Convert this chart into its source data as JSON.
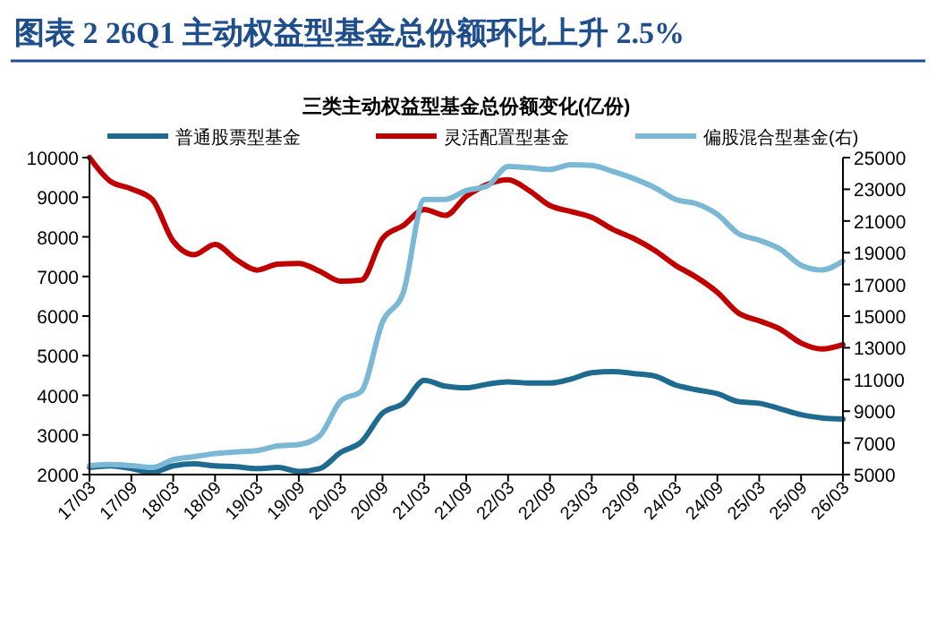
{
  "chart_data": {
    "type": "line",
    "title": "图表 2   26Q1 主动权益型基金总份额环比上升 2.5%",
    "subtitle": "三类主动权益型基金总份额变化(亿份)",
    "categories": [
      "17/03",
      null,
      "17/09",
      null,
      "18/03",
      null,
      "18/09",
      null,
      "19/03",
      null,
      "19/09",
      null,
      "20/03",
      null,
      "20/09",
      null,
      "21/03",
      null,
      "21/09",
      null,
      "22/03",
      null,
      "22/09",
      null,
      "23/03",
      null,
      "23/09",
      null,
      "24/03",
      null,
      "24/09",
      null,
      "25/03",
      null,
      "25/09",
      null,
      "26/03"
    ],
    "series": [
      {
        "name": "普通股票型基金",
        "color": "#1f6a8f",
        "values": [
          2180,
          2220,
          2150,
          2050,
          2220,
          2270,
          2220,
          2200,
          2150,
          2180,
          2080,
          2150,
          2560,
          2830,
          3550,
          3800,
          4380,
          4230,
          4190,
          4280,
          4340,
          4310,
          4310,
          4410,
          4570,
          4600,
          4550,
          4490,
          4260,
          4140,
          4040,
          3840,
          3800,
          3660,
          3510,
          3430,
          3400
        ]
      },
      {
        "name": "灵活配置型基金",
        "color": "#c00000",
        "values": [
          10000,
          9400,
          9210,
          8940,
          7890,
          7550,
          7810,
          7430,
          7160,
          7310,
          7330,
          7130,
          6880,
          6910,
          7960,
          8290,
          8690,
          8540,
          9020,
          9320,
          9440,
          9170,
          8790,
          8640,
          8490,
          8190,
          7960,
          7660,
          7280,
          6980,
          6600,
          6080,
          5880,
          5670,
          5320,
          5170,
          5280
        ]
      },
      {
        "name": "偏股混合型基金(右)",
        "color": "#7ab8d6",
        "axis": "y2",
        "values": [
          5570,
          5640,
          5570,
          5450,
          5940,
          6130,
          6320,
          6430,
          6510,
          6810,
          6890,
          7450,
          9640,
          10280,
          14620,
          16510,
          22360,
          22360,
          22920,
          23200,
          24430,
          24360,
          24250,
          24550,
          24510,
          24130,
          23680,
          23110,
          22360,
          22090,
          21420,
          20210,
          19790,
          19230,
          18210,
          17910,
          18470
        ]
      }
    ],
    "ylim": [
      2000,
      10000
    ],
    "yticks": [
      2000,
      3000,
      4000,
      5000,
      6000,
      7000,
      8000,
      9000,
      10000
    ],
    "y2lim": [
      5000,
      25000
    ],
    "y2ticks": [
      5000,
      7000,
      9000,
      11000,
      13000,
      15000,
      17000,
      19000,
      21000,
      23000,
      25000
    ],
    "legend": "top",
    "grid": false,
    "marker": "none",
    "line_style": "solid"
  }
}
